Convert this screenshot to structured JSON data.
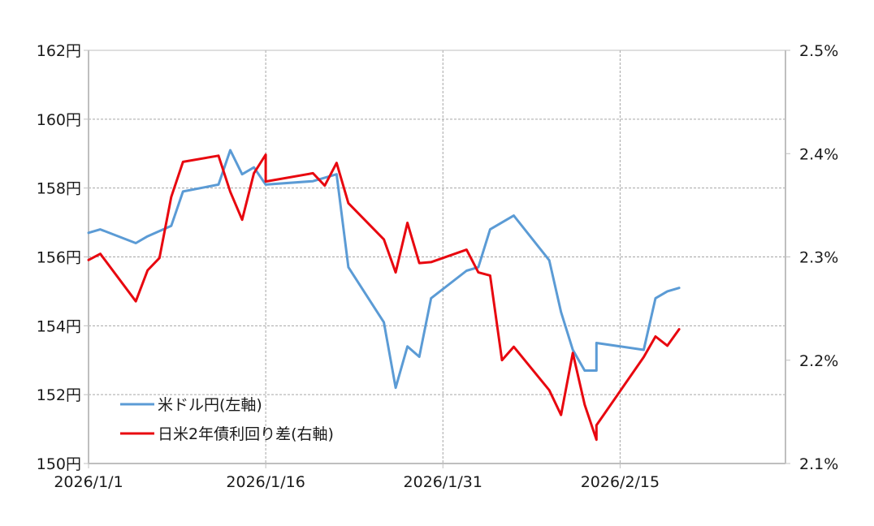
{
  "chart_data": {
    "type": "line",
    "x_axis": {
      "type": "date",
      "range": [
        "2026-01-01",
        "2026-03-01"
      ],
      "tick_values": [
        "2026-01-01",
        "2026-01-16",
        "2026-01-31",
        "2026-02-15"
      ],
      "tick_labels": [
        "2026/1/1",
        "2026/1/16",
        "2026/1/31",
        "2026/2/15"
      ]
    },
    "y_left": {
      "range": [
        150,
        162
      ],
      "ticks": [
        150,
        152,
        154,
        156,
        158,
        160,
        162
      ],
      "tick_labels": [
        "150円",
        "152円",
        "154円",
        "156円",
        "158円",
        "160円",
        "162円"
      ]
    },
    "y_right": {
      "range": [
        2.1,
        2.5
      ],
      "ticks": [
        2.1,
        2.2,
        2.3,
        2.4,
        2.5
      ],
      "tick_labels": [
        "2.1%",
        "2.2%",
        "2.3%",
        "2.4%",
        "2.5%"
      ]
    },
    "grid": true,
    "legend_position": "bottom-left",
    "series": [
      {
        "name": "米ドル円(左軸)",
        "axis": "left",
        "color": "#5b9bd5",
        "points": [
          [
            "2026-01-01",
            156.7
          ],
          [
            "2026-01-02",
            156.8
          ],
          [
            "2026-01-05",
            156.4
          ],
          [
            "2026-01-06",
            156.6
          ],
          [
            "2026-01-08",
            156.9
          ],
          [
            "2026-01-09",
            157.9
          ],
          [
            "2026-01-12",
            158.1
          ],
          [
            "2026-01-13",
            159.1
          ],
          [
            "2026-01-14",
            158.4
          ],
          [
            "2026-01-15",
            158.6
          ],
          [
            "2026-01-16",
            158.1
          ],
          [
            "2026-01-20",
            158.2
          ],
          [
            "2026-01-22",
            158.4
          ],
          [
            "2026-01-23",
            155.7
          ],
          [
            "2026-01-26",
            154.1
          ],
          [
            "2026-01-27",
            152.2
          ],
          [
            "2026-01-28",
            153.4
          ],
          [
            "2026-01-29",
            153.1
          ],
          [
            "2026-01-30",
            154.8
          ],
          [
            "2026-02-02",
            155.6
          ],
          [
            "2026-02-03",
            155.7
          ],
          [
            "2026-02-04",
            156.8
          ],
          [
            "2026-02-06",
            157.2
          ],
          [
            "2026-02-09",
            155.9
          ],
          [
            "2026-02-10",
            154.4
          ],
          [
            "2026-02-11",
            153.3
          ],
          [
            "2026-02-12",
            152.7
          ],
          [
            "2026-02-13",
            152.7
          ],
          [
            "2026-02-13",
            153.5
          ],
          [
            "2026-02-17",
            153.3
          ],
          [
            "2026-02-18",
            154.8
          ],
          [
            "2026-02-19",
            155.0
          ],
          [
            "2026-02-20",
            155.1
          ]
        ]
      },
      {
        "name": "日米2年債利回り差(右軸)",
        "axis": "right",
        "color": "#e8070f",
        "points": [
          [
            "2026-01-01",
            2.297
          ],
          [
            "2026-01-02",
            2.303
          ],
          [
            "2026-01-05",
            2.257
          ],
          [
            "2026-01-06",
            2.287
          ],
          [
            "2026-01-07",
            2.299
          ],
          [
            "2026-01-08",
            2.358
          ],
          [
            "2026-01-09",
            2.392
          ],
          [
            "2026-01-12",
            2.398
          ],
          [
            "2026-01-13",
            2.363
          ],
          [
            "2026-01-14",
            2.336
          ],
          [
            "2026-01-15",
            2.381
          ],
          [
            "2026-01-16",
            2.399
          ],
          [
            "2026-01-16",
            2.373
          ],
          [
            "2026-01-20",
            2.381
          ],
          [
            "2026-01-21",
            2.369
          ],
          [
            "2026-01-22",
            2.391
          ],
          [
            "2026-01-23",
            2.352
          ],
          [
            "2026-01-26",
            2.317
          ],
          [
            "2026-01-27",
            2.285
          ],
          [
            "2026-01-28",
            2.333
          ],
          [
            "2026-01-29",
            2.294
          ],
          [
            "2026-01-30",
            2.295
          ],
          [
            "2026-02-02",
            2.307
          ],
          [
            "2026-02-03",
            2.285
          ],
          [
            "2026-02-04",
            2.282
          ],
          [
            "2026-02-05",
            2.2
          ],
          [
            "2026-02-06",
            2.213
          ],
          [
            "2026-02-09",
            2.171
          ],
          [
            "2026-02-10",
            2.147
          ],
          [
            "2026-02-11",
            2.207
          ],
          [
            "2026-02-12",
            2.157
          ],
          [
            "2026-02-13",
            2.123
          ],
          [
            "2026-02-13",
            2.137
          ],
          [
            "2026-02-17",
            2.203
          ],
          [
            "2026-02-18",
            2.223
          ],
          [
            "2026-02-19",
            2.214
          ],
          [
            "2026-02-20",
            2.23
          ]
        ]
      }
    ]
  }
}
